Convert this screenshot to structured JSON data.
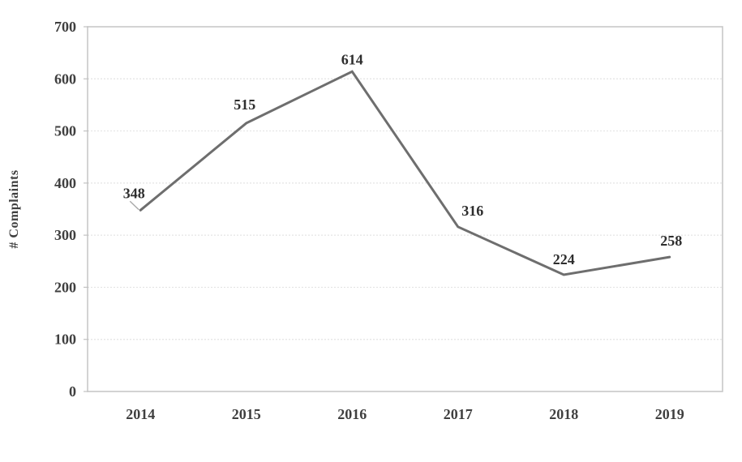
{
  "chart_data": {
    "type": "line",
    "title": "",
    "categories": [
      "2014",
      "2015",
      "2016",
      "2017",
      "2018",
      "2019"
    ],
    "series": [
      {
        "name": "# Complaints",
        "values": [
          348,
          515,
          614,
          316,
          224,
          258
        ]
      }
    ],
    "data_labels": [
      "348",
      "515",
      "614",
      "316",
      "224",
      "258"
    ],
    "xlabel": "",
    "ylabel": "# Complaints",
    "ylim": [
      0,
      700
    ],
    "yticks": [
      0,
      100,
      200,
      300,
      400,
      500,
      600,
      700
    ],
    "grid": "horizontal-dotted",
    "legend_position": "none",
    "colors": {
      "line": "#6e6e6e",
      "gridline": "#e4e4e4",
      "plot_border": "#c8c8c8",
      "tick_mark": "#c2c2c2",
      "axis_text": "#3f3f3f",
      "data_label_text": "#2e2e2e",
      "leader_line": "#a9a9a9",
      "background": "#ffffff"
    }
  }
}
